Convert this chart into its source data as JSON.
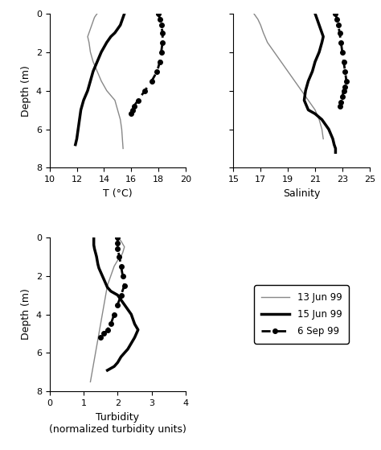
{
  "temp_jun13": {
    "x": [
      13.5,
      13.3,
      13.2,
      13.1,
      13.0,
      12.9,
      12.8,
      12.9,
      13.0,
      13.2,
      13.5,
      13.8,
      14.2,
      14.8,
      15.0,
      15.2,
      15.3,
      15.35,
      15.4
    ],
    "y": [
      0,
      0.2,
      0.4,
      0.6,
      0.8,
      1.0,
      1.2,
      1.5,
      2.0,
      2.5,
      3.0,
      3.5,
      4.0,
      4.5,
      5.0,
      5.5,
      6.0,
      6.5,
      7.0
    ]
  },
  "temp_jun15": {
    "x": [
      15.5,
      15.4,
      15.3,
      15.2,
      15.0,
      14.8,
      14.5,
      14.2,
      13.8,
      13.5,
      13.2,
      13.0,
      12.8,
      12.5,
      12.3,
      12.2,
      12.1,
      12.0,
      11.9
    ],
    "y": [
      0,
      0.2,
      0.4,
      0.6,
      0.8,
      1.0,
      1.2,
      1.5,
      2.0,
      2.5,
      3.0,
      3.5,
      4.0,
      4.5,
      5.0,
      5.5,
      6.0,
      6.5,
      6.8
    ]
  },
  "temp_sep6": {
    "x": [
      18.0,
      18.1,
      18.2,
      18.3,
      18.3,
      18.2,
      18.1,
      17.9,
      17.5,
      17.0,
      16.5,
      16.2,
      16.1,
      16.0
    ],
    "y": [
      0,
      0.3,
      0.6,
      1.0,
      1.5,
      2.0,
      2.5,
      3.0,
      3.5,
      4.0,
      4.5,
      4.8,
      5.0,
      5.2
    ]
  },
  "sal_jun13": {
    "x": [
      16.5,
      16.8,
      17.0,
      17.2,
      17.5,
      18.0,
      18.5,
      19.0,
      19.5,
      20.0,
      20.5,
      21.0,
      21.3,
      21.5,
      21.6
    ],
    "y": [
      0,
      0.3,
      0.6,
      1.0,
      1.5,
      2.0,
      2.5,
      3.0,
      3.5,
      4.0,
      4.5,
      5.0,
      5.5,
      6.0,
      6.5
    ]
  },
  "sal_jun15": {
    "x": [
      21.0,
      21.1,
      21.2,
      21.3,
      21.4,
      21.5,
      21.6,
      21.5,
      21.3,
      21.0,
      20.8,
      20.5,
      20.3,
      20.2,
      20.5,
      21.0,
      21.5,
      22.0,
      22.3,
      22.4,
      22.5,
      22.5
    ],
    "y": [
      0,
      0.2,
      0.4,
      0.6,
      0.8,
      1.0,
      1.2,
      1.5,
      2.0,
      2.5,
      3.0,
      3.5,
      4.0,
      4.5,
      5.0,
      5.2,
      5.5,
      6.0,
      6.5,
      6.8,
      7.0,
      7.2
    ]
  },
  "sal_sep6": {
    "x": [
      22.5,
      22.6,
      22.7,
      22.8,
      22.9,
      23.0,
      23.1,
      23.2,
      23.3,
      23.2,
      23.1,
      23.0,
      22.9,
      22.8
    ],
    "y": [
      0,
      0.3,
      0.6,
      1.0,
      1.5,
      2.0,
      2.5,
      3.0,
      3.5,
      3.8,
      4.0,
      4.3,
      4.6,
      4.8
    ]
  },
  "turb_jun13": {
    "x": [
      2.0,
      2.1,
      2.2,
      2.15,
      2.1,
      2.0,
      1.9,
      1.8,
      1.7,
      1.65,
      1.6,
      1.55,
      1.5,
      1.45,
      1.4,
      1.35,
      1.3,
      1.25,
      1.2
    ],
    "y": [
      0,
      0.2,
      0.5,
      0.8,
      1.0,
      1.2,
      1.5,
      2.0,
      2.5,
      3.0,
      3.5,
      4.0,
      4.5,
      5.0,
      5.5,
      6.0,
      6.5,
      7.0,
      7.5
    ]
  },
  "turb_jun15": {
    "x": [
      1.3,
      1.3,
      1.3,
      1.32,
      1.35,
      1.38,
      1.4,
      1.42,
      1.45,
      1.5,
      1.55,
      1.6,
      1.65,
      1.7,
      1.8,
      2.0,
      2.2,
      2.4,
      2.5,
      2.6,
      2.55,
      2.5,
      2.4,
      2.3,
      2.2,
      2.1,
      2.0,
      1.9,
      1.8,
      1.7
    ],
    "y": [
      0,
      0.2,
      0.4,
      0.6,
      0.8,
      1.0,
      1.2,
      1.4,
      1.6,
      1.8,
      2.0,
      2.2,
      2.4,
      2.6,
      2.8,
      3.0,
      3.5,
      4.0,
      4.5,
      4.8,
      5.0,
      5.2,
      5.5,
      5.8,
      6.0,
      6.2,
      6.5,
      6.7,
      6.8,
      6.9
    ]
  },
  "turb_sep6": {
    "x": [
      2.0,
      2.0,
      2.0,
      2.05,
      2.1,
      2.15,
      2.2,
      2.1,
      2.0,
      1.9,
      1.8,
      1.7,
      1.6,
      1.5
    ],
    "y": [
      0,
      0.3,
      0.6,
      1.0,
      1.5,
      2.0,
      2.5,
      3.0,
      3.5,
      4.0,
      4.5,
      4.8,
      5.0,
      5.2
    ]
  },
  "temp_xlim": [
    10,
    20
  ],
  "temp_xticks": [
    10,
    12,
    14,
    16,
    18,
    20
  ],
  "sal_xlim": [
    15,
    25
  ],
  "sal_xticks": [
    15,
    17,
    19,
    21,
    23,
    25
  ],
  "turb_xlim": [
    0,
    4
  ],
  "turb_xticks": [
    0,
    1,
    2,
    3,
    4
  ],
  "ylim": [
    8,
    0
  ],
  "yticks": [
    0,
    2,
    4,
    6,
    8
  ],
  "ylabel": "Depth (m)",
  "temp_xlabel": "T (°C)",
  "sal_xlabel": "Salinity",
  "turb_xlabel": "Turbidity\n(normalized turbidity units)",
  "legend_labels": [
    "13 Jun 99",
    "15 Jun 99",
    "6 Sep 99"
  ],
  "color_jun13": "#888888",
  "color_jun15": "#000000",
  "color_sep6": "#000000",
  "lw_jun13": 1.0,
  "lw_jun15": 2.5,
  "lw_sep6": 2.0
}
